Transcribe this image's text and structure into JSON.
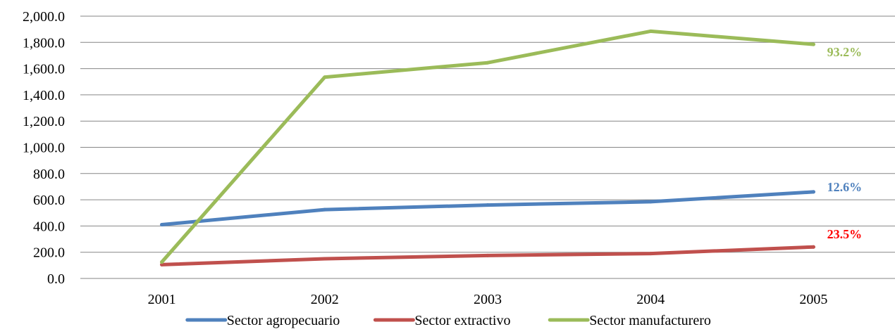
{
  "chart_data": {
    "type": "line",
    "title": "",
    "xlabel": "",
    "ylabel": "",
    "categories": [
      "2001",
      "2002",
      "2003",
      "2004",
      "2005"
    ],
    "ylim": [
      0,
      2000
    ],
    "y_ticks": [
      0,
      200,
      400,
      600,
      800,
      1000,
      1200,
      1400,
      1600,
      1800,
      2000
    ],
    "y_tick_labels": [
      "0.0",
      "200.0",
      "400.0",
      "600.0",
      "800.0",
      "1,000.0",
      "1,200.0",
      "1,400.0",
      "1,600.0",
      "1,800.0",
      "2,000.0"
    ],
    "grid": true,
    "legend_position": "bottom",
    "series": [
      {
        "name": "Sector agropecuario",
        "color": "#4f81bd",
        "values": [
          410,
          525,
          560,
          585,
          660
        ],
        "end_label": "12.6%"
      },
      {
        "name": "Sector extractivo",
        "color": "#c0504d",
        "values": [
          105,
          150,
          175,
          190,
          240
        ],
        "end_label": "23.5%",
        "end_label_color": "#ff0000"
      },
      {
        "name": "Sector manufacturero",
        "color": "#9bbb59",
        "values": [
          125,
          1535,
          1645,
          1885,
          1785
        ],
        "end_label": "93.2%"
      }
    ]
  }
}
